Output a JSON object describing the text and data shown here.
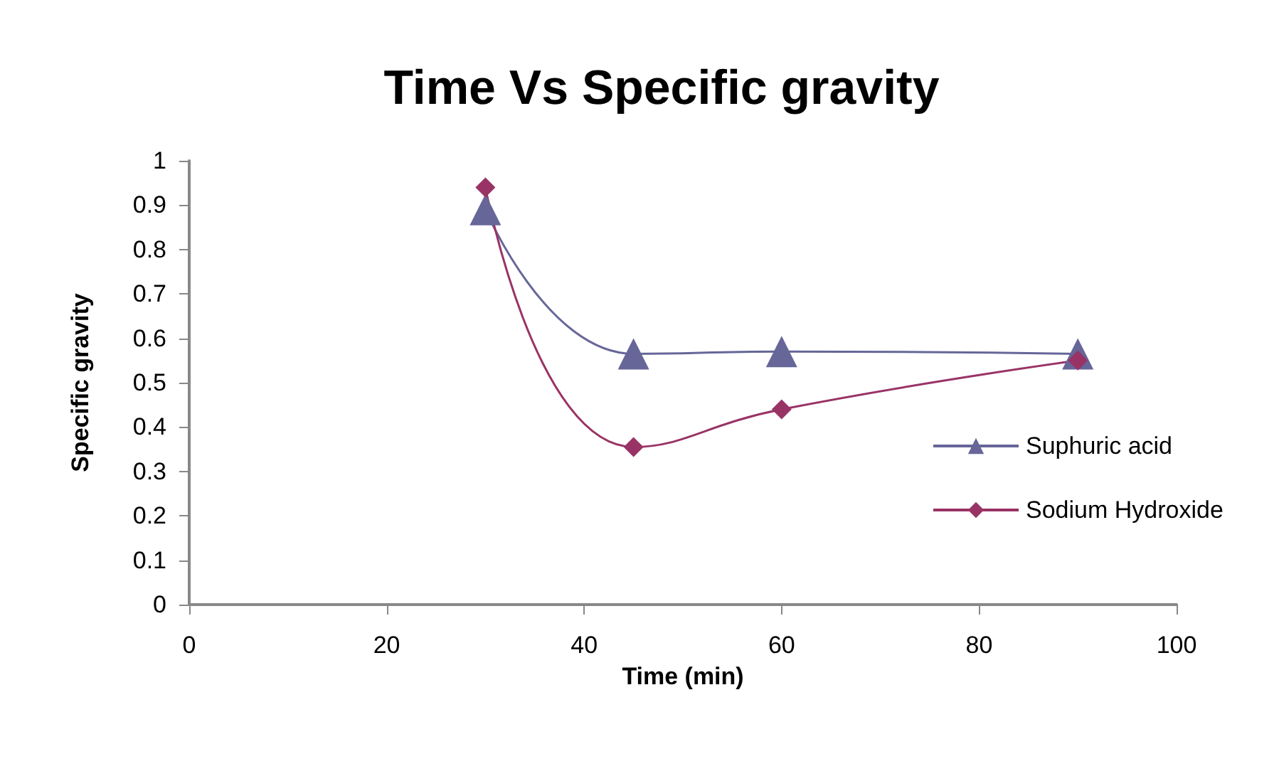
{
  "chart_data": {
    "type": "line",
    "title": "Time Vs Specific gravity",
    "xlabel": "Time (min)",
    "ylabel": "Specific gravity",
    "xlim": [
      0,
      100
    ],
    "xticks": [
      0,
      20,
      40,
      60,
      80,
      100
    ],
    "ylim": [
      0,
      1
    ],
    "yticks": [
      0,
      0.1,
      0.2,
      0.3,
      0.4,
      0.5,
      0.6,
      0.7,
      0.8,
      0.9,
      1
    ],
    "x": [
      30,
      45,
      60,
      90
    ],
    "series": [
      {
        "name": "Suphuric acid",
        "color": "#666699",
        "marker": "triangle",
        "values": [
          0.89,
          0.565,
          0.57,
          0.565
        ]
      },
      {
        "name": "Sodium Hydroxide",
        "color": "#993366",
        "marker": "diamond",
        "values": [
          0.94,
          0.355,
          0.44,
          0.55
        ]
      }
    ],
    "legend": "right",
    "grid": false,
    "line_style": "solid"
  }
}
